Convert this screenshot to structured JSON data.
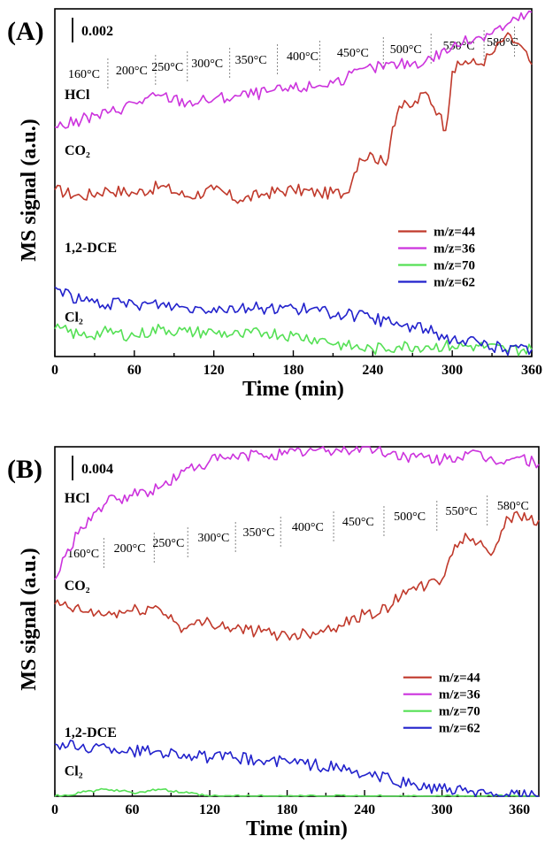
{
  "ylabel": "MS signal (a.u.)",
  "colors": {
    "m44": "#c0392b",
    "m36": "#cc33dd",
    "m70": "#55e055",
    "m62": "#2222cc"
  },
  "chart_data": [
    {
      "type": "line",
      "panel_label": "(A)",
      "scale_bar": "0.002",
      "xlabel": "Time (min)",
      "xlim": [
        0,
        360
      ],
      "xticks": [
        0,
        60,
        120,
        180,
        240,
        300,
        360
      ],
      "temperature_labels": [
        {
          "label": "160°C",
          "t": 22
        },
        {
          "label": "200°C",
          "t": 58
        },
        {
          "label": "250°C",
          "t": 85
        },
        {
          "label": "300°C",
          "t": 115
        },
        {
          "label": "350°C",
          "t": 148
        },
        {
          "label": "400°C",
          "t": 187
        },
        {
          "label": "450°C",
          "t": 225
        },
        {
          "label": "500°C",
          "t": 265
        },
        {
          "label": "550°C",
          "t": 305
        },
        {
          "label": "580°C",
          "t": 338
        }
      ],
      "temperature_dividers": [
        40,
        76,
        100,
        132,
        168,
        200,
        248,
        284,
        324,
        347
      ],
      "species_labels": [
        {
          "label": "HCl",
          "t": 6,
          "y": 0.74
        },
        {
          "label": "CO₂",
          "t": 6,
          "y": 0.58
        },
        {
          "label": "1,2-DCE",
          "t": 6,
          "y": 0.3
        },
        {
          "label": "Cl₂",
          "t": 6,
          "y": 0.1
        }
      ],
      "legend_position": "right",
      "series": [
        {
          "name": "m/z=44",
          "color_key": "m44",
          "x": [
            0,
            20,
            40,
            60,
            80,
            100,
            120,
            140,
            160,
            180,
            200,
            220,
            230,
            240,
            250,
            255,
            260,
            270,
            280,
            290,
            295,
            300,
            310,
            320,
            330,
            340,
            350,
            360
          ],
          "y": [
            0.48,
            0.46,
            0.48,
            0.47,
            0.49,
            0.46,
            0.48,
            0.45,
            0.47,
            0.48,
            0.47,
            0.47,
            0.57,
            0.58,
            0.55,
            0.66,
            0.72,
            0.72,
            0.76,
            0.7,
            0.65,
            0.82,
            0.85,
            0.84,
            0.87,
            0.92,
            0.9,
            0.84
          ]
        },
        {
          "name": "m/z=36",
          "color_key": "m36",
          "x": [
            0,
            20,
            40,
            60,
            80,
            100,
            120,
            140,
            160,
            180,
            200,
            220,
            240,
            260,
            280,
            300,
            320,
            340,
            360
          ],
          "y": [
            0.66,
            0.68,
            0.7,
            0.73,
            0.75,
            0.73,
            0.74,
            0.75,
            0.76,
            0.77,
            0.78,
            0.8,
            0.83,
            0.84,
            0.85,
            0.89,
            0.92,
            0.95,
            0.99
          ]
        },
        {
          "name": "m/z=70",
          "color_key": "m70",
          "x": [
            0,
            20,
            40,
            60,
            80,
            100,
            120,
            140,
            160,
            180,
            200,
            220,
            240,
            260,
            280,
            300,
            320,
            340,
            360
          ],
          "y": [
            0.08,
            0.06,
            0.07,
            0.06,
            0.08,
            0.07,
            0.07,
            0.06,
            0.07,
            0.06,
            0.05,
            0.03,
            0.02,
            0.03,
            0.03,
            0.03,
            0.03,
            0.02,
            0.02
          ]
        },
        {
          "name": "m/z=62",
          "color_key": "m62",
          "x": [
            0,
            20,
            40,
            60,
            80,
            100,
            120,
            140,
            160,
            180,
            200,
            220,
            240,
            260,
            280,
            300,
            320,
            340,
            360
          ],
          "y": [
            0.2,
            0.16,
            0.15,
            0.15,
            0.15,
            0.14,
            0.14,
            0.14,
            0.14,
            0.14,
            0.13,
            0.12,
            0.11,
            0.09,
            0.08,
            0.05,
            0.04,
            0.02,
            0.02
          ]
        }
      ]
    },
    {
      "type": "line",
      "panel_label": "(B)",
      "scale_bar": "0.004",
      "xlabel": "Time (min)",
      "xlim": [
        0,
        375
      ],
      "xticks": [
        0,
        60,
        120,
        180,
        240,
        300,
        360
      ],
      "temperature_labels": [
        {
          "label": "160°C",
          "t": 22
        },
        {
          "label": "200°C",
          "t": 58
        },
        {
          "label": "250°C",
          "t": 88
        },
        {
          "label": "300°C",
          "t": 123
        },
        {
          "label": "350°C",
          "t": 158
        },
        {
          "label": "400°C",
          "t": 196
        },
        {
          "label": "450°C",
          "t": 235
        },
        {
          "label": "500°C",
          "t": 275
        },
        {
          "label": "550°C",
          "t": 315
        },
        {
          "label": "580°C",
          "t": 355
        }
      ],
      "temperature_dividers": [
        38,
        77,
        103,
        140,
        175,
        216,
        255,
        296,
        335
      ],
      "species_labels": [
        {
          "label": "HCl",
          "t": 6,
          "y": 0.84
        },
        {
          "label": "CO₂",
          "t": 6,
          "y": 0.59
        },
        {
          "label": "1,2-DCE",
          "t": 6,
          "y": 0.17
        },
        {
          "label": "Cl₂",
          "t": 6,
          "y": 0.06
        }
      ],
      "legend_position": "right",
      "series": [
        {
          "name": "m/z=44",
          "color_key": "m44",
          "x": [
            0,
            20,
            40,
            60,
            80,
            100,
            120,
            140,
            160,
            180,
            200,
            220,
            240,
            260,
            270,
            280,
            300,
            310,
            320,
            340,
            350,
            360,
            375
          ],
          "y": [
            0.55,
            0.53,
            0.52,
            0.53,
            0.54,
            0.48,
            0.5,
            0.48,
            0.47,
            0.46,
            0.47,
            0.49,
            0.52,
            0.54,
            0.59,
            0.59,
            0.62,
            0.72,
            0.74,
            0.7,
            0.8,
            0.8,
            0.79
          ]
        },
        {
          "name": "m/z=36",
          "color_key": "m36",
          "x": [
            0,
            20,
            40,
            60,
            80,
            100,
            120,
            140,
            160,
            180,
            200,
            220,
            240,
            260,
            280,
            300,
            320,
            340,
            360,
            375
          ],
          "y": [
            0.62,
            0.77,
            0.84,
            0.86,
            0.88,
            0.93,
            0.96,
            0.97,
            0.98,
            0.98,
            0.99,
            0.99,
            1.0,
            0.98,
            0.97,
            0.96,
            0.98,
            0.96,
            0.97,
            0.95
          ]
        },
        {
          "name": "m/z=70",
          "color_key": "m70",
          "x": [
            0,
            20,
            40,
            60,
            80,
            100,
            120,
            180,
            240,
            300,
            360,
            375
          ],
          "y": [
            0.0,
            0.01,
            0.02,
            0.01,
            0.02,
            0.01,
            0.0,
            0.0,
            0.0,
            0.0,
            0.0,
            0.0
          ]
        },
        {
          "name": "m/z=62",
          "color_key": "m62",
          "x": [
            0,
            20,
            40,
            60,
            80,
            100,
            120,
            140,
            160,
            180,
            200,
            220,
            240,
            260,
            280,
            300,
            320,
            340,
            360,
            375
          ],
          "y": [
            0.15,
            0.14,
            0.14,
            0.13,
            0.13,
            0.12,
            0.11,
            0.11,
            0.1,
            0.1,
            0.09,
            0.08,
            0.06,
            0.05,
            0.03,
            0.02,
            0.01,
            0.0,
            0.0,
            0.0
          ]
        }
      ]
    }
  ]
}
